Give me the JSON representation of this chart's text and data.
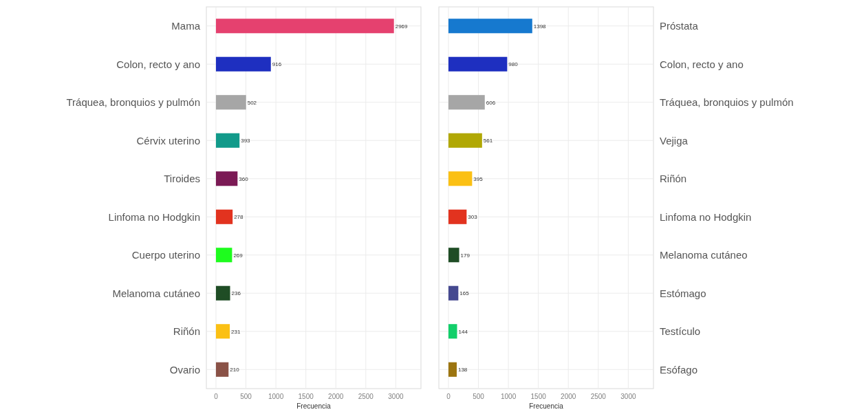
{
  "chart_data": [
    {
      "type": "bar",
      "orientation": "horizontal",
      "xlabel": "Frecuencia",
      "categories": [
        "Mama",
        "Colon, recto y ano",
        "Tráquea, bronquios y pulmón",
        "Cérvix uterino",
        "Tiroides",
        "Linfoma no Hodgkin",
        "Cuerpo uterino",
        "Melanoma cutáneo",
        "Riñón",
        "Ovario"
      ],
      "values": [
        2969,
        916,
        502,
        393,
        360,
        278,
        269,
        236,
        231,
        210
      ],
      "colors": [
        "#e5416f",
        "#1e2fc0",
        "#a6a6a6",
        "#129a8a",
        "#7b1a55",
        "#e2331f",
        "#1efc1e",
        "#1f4d25",
        "#fbc014",
        "#8a5247"
      ],
      "xlim": [
        -160,
        3420
      ],
      "xticks": [
        0,
        500,
        1000,
        1500,
        2000,
        2500,
        3000
      ],
      "grid": true,
      "data_labels": true
    },
    {
      "type": "bar",
      "orientation": "horizontal",
      "xlabel": "Frecuencia",
      "categories": [
        "Próstata",
        "Colon, recto y ano",
        "Tráquea, bronquios y pulmón",
        "Vejiga",
        "Riñón",
        "Linfoma no Hodgkin",
        "Melanoma cutáneo",
        "Estómago",
        "Testículo",
        "Esófago"
      ],
      "values": [
        1398,
        980,
        606,
        561,
        395,
        303,
        179,
        165,
        144,
        138
      ],
      "colors": [
        "#1679cf",
        "#1e2fc0",
        "#a6a6a6",
        "#b1a804",
        "#fbc014",
        "#e2331f",
        "#1f4d25",
        "#454990",
        "#12cf6a",
        "#9c7510"
      ],
      "xlim": [
        -160,
        3420
      ],
      "xticks": [
        0,
        500,
        1000,
        1500,
        2000,
        2500,
        3000
      ],
      "grid": true,
      "data_labels": true
    }
  ]
}
